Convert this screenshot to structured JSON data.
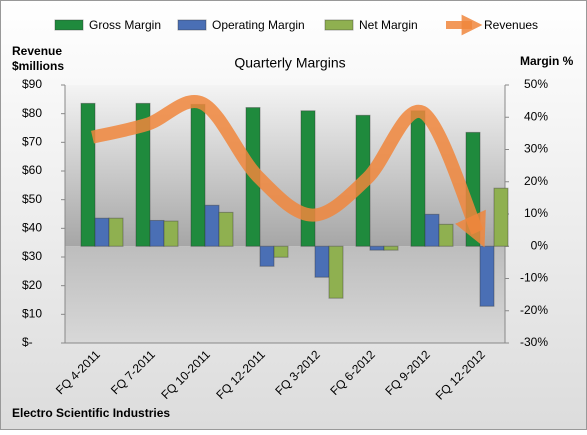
{
  "chart_data": {
    "type": "bar-line",
    "title": "Quarterly Margins",
    "y_label": "Revenue $millions",
    "y2_label": "Margin %",
    "footer": "Electro Scientific Industries",
    "categories": [
      "FQ 4-2011",
      "FQ 7-2011",
      "FQ 10-2011",
      "FQ 12-2011",
      "FQ 3-2012",
      "FQ 6-2012",
      "FQ 9-2012",
      "FQ 12-2012"
    ],
    "series": [
      {
        "name": "Gross Margin",
        "type": "bar",
        "axis": "y2",
        "color": "#1f8a3d",
        "values": [
          44.3,
          44.3,
          44,
          43,
          42,
          40.6,
          42,
          35.3
        ]
      },
      {
        "name": "Operating Margin",
        "type": "bar",
        "axis": "y2",
        "color": "#4a6fb5",
        "values": [
          8.7,
          8,
          12.7,
          -6.2,
          -9.6,
          -1.2,
          9.9,
          -18.6
        ]
      },
      {
        "name": "Net Margin",
        "type": "bar",
        "axis": "y2",
        "color": "#8fb050",
        "values": [
          8.7,
          7.8,
          10.5,
          -3.4,
          -16.1,
          -1.2,
          6.8,
          18
        ]
      },
      {
        "name": "Revenues",
        "type": "line",
        "axis": "y",
        "color": "#f0863c",
        "values": [
          71.8,
          76.3,
          83.6,
          58.2,
          44.6,
          57.5,
          80.5,
          38.7
        ]
      }
    ],
    "ylim": [
      0,
      90
    ],
    "yticks": [
      {
        "value": 0,
        "label": "$-"
      },
      {
        "value": 10,
        "label": "$10"
      },
      {
        "value": 20,
        "label": "$20"
      },
      {
        "value": 30,
        "label": "$30"
      },
      {
        "value": 40,
        "label": "$40"
      },
      {
        "value": 50,
        "label": "$50"
      },
      {
        "value": 60,
        "label": "$60"
      },
      {
        "value": 70,
        "label": "$70"
      },
      {
        "value": 80,
        "label": "$80"
      },
      {
        "value": 90,
        "label": "$90"
      }
    ],
    "y2lim": [
      -30,
      50
    ],
    "y2ticks": [
      {
        "value": -30,
        "label": "-30%"
      },
      {
        "value": -20,
        "label": "-20%"
      },
      {
        "value": -10,
        "label": "-10%"
      },
      {
        "value": 0,
        "label": "0%"
      },
      {
        "value": 10,
        "label": "10%"
      },
      {
        "value": 20,
        "label": "20%"
      },
      {
        "value": 30,
        "label": "30%"
      },
      {
        "value": 40,
        "label": "40%"
      },
      {
        "value": 50,
        "label": "50%"
      }
    ],
    "grid": false
  }
}
